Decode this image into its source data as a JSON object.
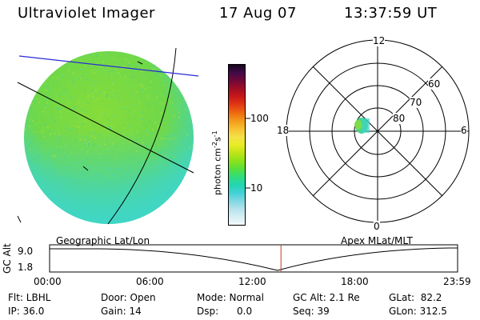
{
  "header": {
    "instrument": "Ultraviolet Imager",
    "date": "17 Aug 07",
    "time": "13:37:59 UT"
  },
  "colorbar": {
    "unit_main": "photon cm",
    "unit_exp1": "-2",
    "unit_mid": "s",
    "unit_exp2": "-1",
    "ticks": [
      "100",
      "10"
    ],
    "colors": [
      "#f2f8fb",
      "#d6eef3",
      "#b4e2ec",
      "#7fd7e4",
      "#40d2d6",
      "#22d6b0",
      "#30dd7c",
      "#58e03c",
      "#8ee21a",
      "#bfe41a",
      "#e9ec24",
      "#f4e048",
      "#f8c030",
      "#f39a1a",
      "#ee6a10",
      "#e23a14",
      "#c81818",
      "#a00e24",
      "#72083a",
      "#420a48",
      "#180620"
    ]
  },
  "polar": {
    "mlt_labels": {
      "top": "12",
      "bottom": "0",
      "left": "18",
      "right": "6"
    },
    "lat_labels": [
      "60",
      "70",
      "80"
    ]
  },
  "timeline": {
    "left_label": "Geographic Lat/Lon",
    "right_label": "Apex MLat/MLT",
    "ylabel": "GC Alt",
    "y_ticks": [
      "9.0",
      "1.8"
    ],
    "x_ticks": [
      "00:00",
      "06:00",
      "12:00",
      "18:00",
      "23:59"
    ],
    "current_fraction": 0.567
  },
  "info": {
    "flt": "Flt: LBHL",
    "ip": "IP: 36.0",
    "door": "Door: Open",
    "gain": "Gain: 14",
    "mode": "Mode: Normal",
    "dsp": "Dsp:      0.0",
    "gcalt": "GC Alt: 2.1 Re",
    "seq": "Seq: 39",
    "glat": "GLat:  82.2",
    "glon": "GLon: 312.5"
  },
  "style": {
    "disk_color": "#7ed83a",
    "disk_cyan": "#3fd6c8",
    "meridian_color": "#000000",
    "coastline_color": "#2a2ad8",
    "marker_color": "#c0392b"
  }
}
